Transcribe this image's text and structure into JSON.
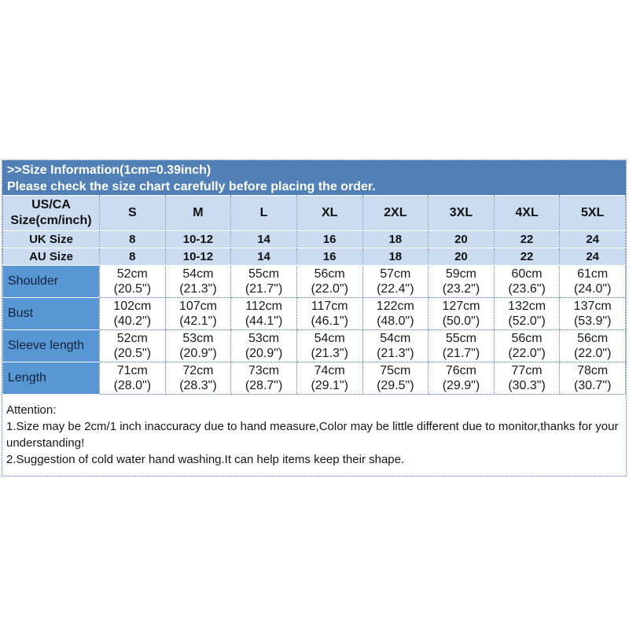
{
  "banner": {
    "title": ">>Size Information(1cm=0.39inch)",
    "subtitle": "Please check the size chart carefully before placing the order."
  },
  "table": {
    "corner_line1": "US/CA",
    "corner_line2": "Size(cm/inch)",
    "sizes": [
      "S",
      "M",
      "L",
      "XL",
      "2XL",
      "3XL",
      "4XL",
      "5XL"
    ],
    "uk": {
      "label": "UK Size",
      "values": [
        "8",
        "10-12",
        "14",
        "16",
        "18",
        "20",
        "22",
        "24"
      ]
    },
    "au": {
      "label": "AU Size",
      "values": [
        "8",
        "10-12",
        "14",
        "16",
        "18",
        "20",
        "22",
        "24"
      ]
    },
    "measurements": [
      {
        "label": "Shoulder",
        "cm": [
          "52cm",
          "54cm",
          "55cm",
          "56cm",
          "57cm",
          "59cm",
          "60cm",
          "61cm"
        ],
        "inch": [
          "(20.5\")",
          "(21.3\")",
          "(21.7\")",
          "(22.0\")",
          "(22.4\")",
          "(23.2\")",
          "(23.6\")",
          "(24.0\")"
        ]
      },
      {
        "label": "Bust",
        "cm": [
          "102cm",
          "107cm",
          "112cm",
          "117cm",
          "122cm",
          "127cm",
          "132cm",
          "137cm"
        ],
        "inch": [
          "(40.2\")",
          "(42.1\")",
          "(44.1\")",
          "(46.1\")",
          "(48.0\")",
          "(50.0\")",
          "(52.0\")",
          "(53.9\")"
        ]
      },
      {
        "label": "Sleeve length",
        "cm": [
          "52cm",
          "53cm",
          "53cm",
          "54cm",
          "54cm",
          "55cm",
          "56cm",
          "56cm"
        ],
        "inch": [
          "(20.5\")",
          "(20.9\")",
          "(20.9\")",
          "(21.3\")",
          "(21.3\")",
          "(21.7\")",
          "(22.0\")",
          "(22.0\")"
        ]
      },
      {
        "label": "Length",
        "cm": [
          "71cm",
          "72cm",
          "73cm",
          "74cm",
          "75cm",
          "76cm",
          "77cm",
          "78cm"
        ],
        "inch": [
          "(28.0\")",
          "(28.3\")",
          "(28.7\")",
          "(29.1\")",
          "(29.5\")",
          "(29.9\")",
          "(30.3\")",
          "(30.7\")"
        ]
      }
    ]
  },
  "attention": {
    "title": "Attention:",
    "note1": "1.Size may be 2cm/1 inch inaccuracy due to hand measure,Color may be little different due to monitor,thanks for your understanding!",
    "note2": "2.Suggestion of cold water hand washing.It can help items keep their shape."
  },
  "colors": {
    "banner_bg": "#5080b5",
    "banner_text": "#ffffff",
    "header_bg": "#cbdcf0",
    "label_bg": "#5897d3",
    "border_blue": "#4d7dbb"
  }
}
